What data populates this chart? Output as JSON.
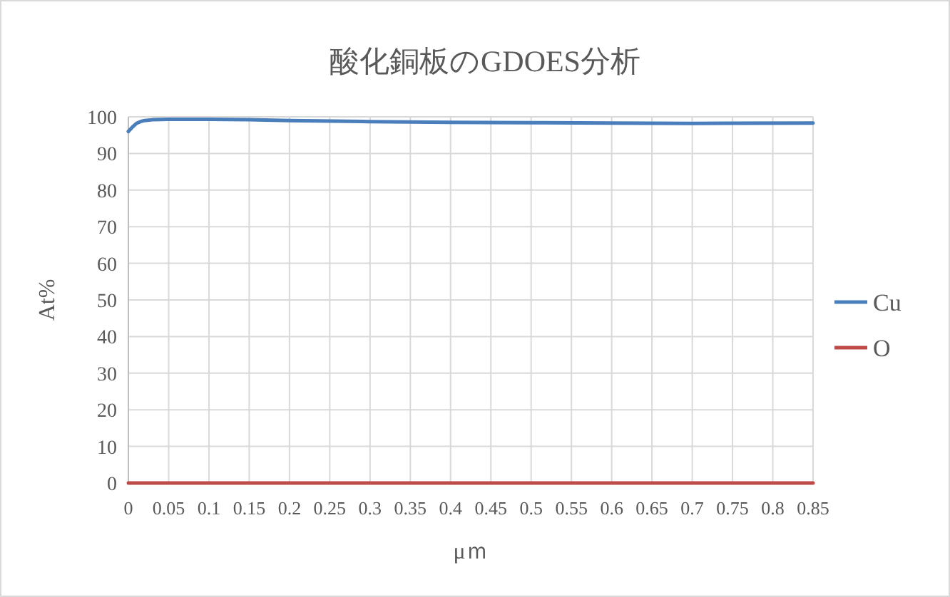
{
  "chart_data": {
    "type": "line",
    "title": "酸化銅板のGDOES分析",
    "xlabel": "μｍ",
    "ylabel": "At%",
    "xlim": [
      0,
      0.85
    ],
    "xticks": [
      0,
      0.05,
      0.1,
      0.15,
      0.2,
      0.25,
      0.3,
      0.35,
      0.4,
      0.45,
      0.5,
      0.55,
      0.6,
      0.65,
      0.7,
      0.75,
      0.8,
      0.85
    ],
    "ylim": [
      0,
      100
    ],
    "yticks": [
      0,
      10,
      20,
      30,
      40,
      50,
      60,
      70,
      80,
      90,
      100
    ],
    "grid": true,
    "legend": "right",
    "marker": "none",
    "line_style": "solid",
    "series": [
      {
        "name": "Cu",
        "color": "#4a7ebb",
        "x": [
          0,
          0.005,
          0.01,
          0.015,
          0.02,
          0.03,
          0.05,
          0.1,
          0.15,
          0.2,
          0.3,
          0.4,
          0.5,
          0.6,
          0.7,
          0.85
        ],
        "values": [
          96,
          97.2,
          98.2,
          98.7,
          99,
          99.2,
          99.3,
          99.3,
          99.2,
          99,
          98.7,
          98.5,
          98.4,
          98.3,
          98.2,
          98.3
        ]
      },
      {
        "name": "O",
        "color": "#be4b48",
        "x": [
          0,
          0.85
        ],
        "values": [
          0,
          0
        ]
      }
    ]
  }
}
